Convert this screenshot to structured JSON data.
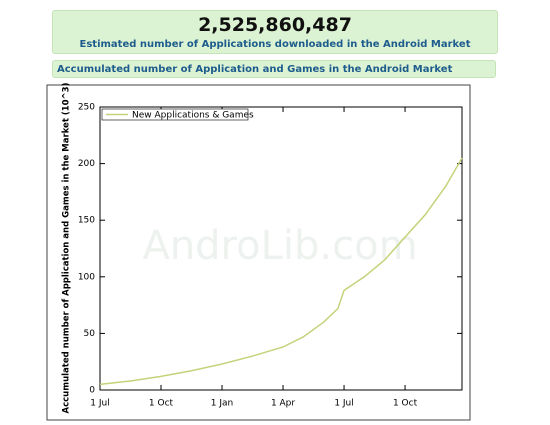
{
  "header": {
    "value": "2,525,860,487",
    "subtitle": "Estimated number of Applications downloaded in the Android Market"
  },
  "section": {
    "title": "Accumulated number of Application and Games in the Android Market"
  },
  "chart_data": {
    "type": "line",
    "watermark": "AndroLib.com",
    "y_label": "Accumulated number of Application and Games in the Market (10^3)",
    "x": [
      0,
      1.5,
      3,
      4.5,
      6,
      7.5,
      9,
      10,
      11,
      11.7,
      12,
      13,
      14,
      15,
      16,
      17,
      17.8
    ],
    "series": [
      {
        "name": "New Applications & Games",
        "color": "#c5d27a",
        "values": [
          5,
          8,
          12,
          17,
          23,
          30,
          38,
          47,
          60,
          72,
          88,
          100,
          115,
          135,
          155,
          180,
          205
        ]
      }
    ],
    "xlim": [
      0,
      17.8
    ],
    "xticks": [
      {
        "value": 0,
        "label": "1 Jul"
      },
      {
        "value": 3,
        "label": "1 Oct"
      },
      {
        "value": 6,
        "label": "1 Jan"
      },
      {
        "value": 9,
        "label": "1 Apr"
      },
      {
        "value": 12,
        "label": "1 Jul"
      },
      {
        "value": 15,
        "label": "1 Oct"
      }
    ],
    "ylim": [
      0,
      250
    ],
    "yticks": [
      0,
      50,
      100,
      150,
      200,
      250
    ],
    "legend": "top-left"
  }
}
